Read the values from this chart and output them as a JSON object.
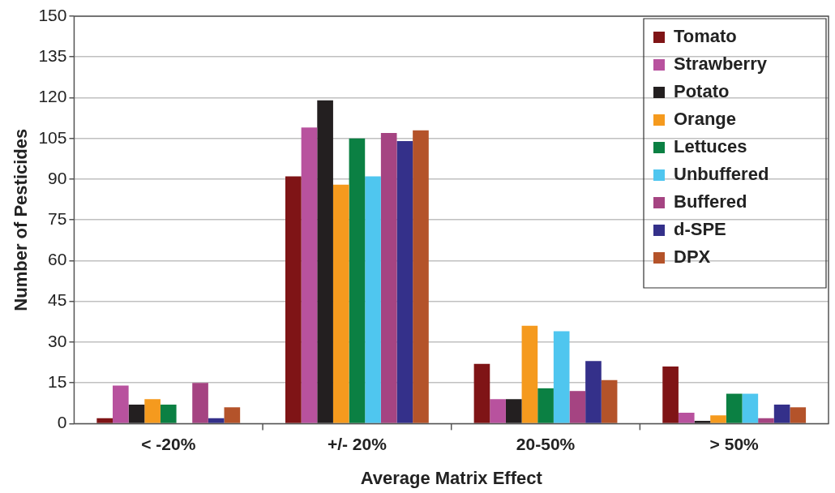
{
  "chart_data": {
    "type": "bar",
    "xlabel": "Average Matrix Effect",
    "ylabel": "Number of Pesticides",
    "categories": [
      "< -20%",
      "+/- 20%",
      "20-50%",
      "> 50%"
    ],
    "ylim": [
      0,
      150
    ],
    "yticks": [
      0,
      15,
      30,
      45,
      60,
      75,
      90,
      105,
      120,
      135,
      150
    ],
    "grid": "y",
    "legend": "top right",
    "series": [
      {
        "name": "Tomato",
        "color": "#7f1416",
        "values": [
          2,
          91,
          22,
          21
        ]
      },
      {
        "name": "Strawberry",
        "color": "#b8529e",
        "values": [
          14,
          109,
          9,
          4
        ]
      },
      {
        "name": "Potato",
        "color": "#231f20",
        "values": [
          7,
          119,
          9,
          1
        ]
      },
      {
        "name": "Orange",
        "color": "#f59a1e",
        "values": [
          9,
          88,
          36,
          3
        ]
      },
      {
        "name": "Lettuces",
        "color": "#0b8043",
        "values": [
          7,
          105,
          13,
          11
        ]
      },
      {
        "name": "Unbuffered",
        "color": "#4fc6ef",
        "values": [
          0,
          91,
          34,
          11
        ]
      },
      {
        "name": "Buffered",
        "color": "#a54482",
        "values": [
          15,
          107,
          12,
          2
        ]
      },
      {
        "name": "d-SPE",
        "color": "#34308a",
        "values": [
          2,
          104,
          23,
          7
        ]
      },
      {
        "name": "DPX",
        "color": "#b4532a",
        "values": [
          6,
          108,
          16,
          6
        ]
      }
    ]
  }
}
